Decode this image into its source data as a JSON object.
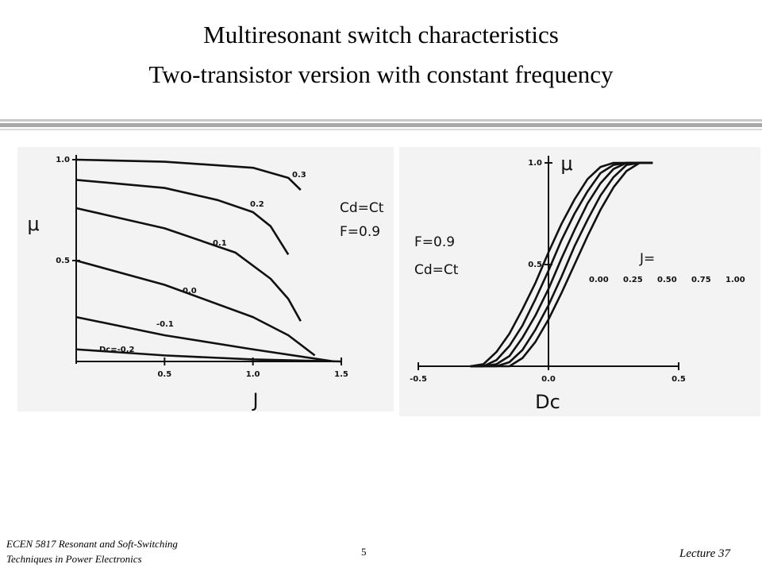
{
  "slide": {
    "title": [
      "Multiresonant switch characteristics",
      "Two-transistor version with constant frequency"
    ],
    "footer_left": [
      "ECEN 5817  Resonant and Soft-Switching",
      "Techniques in Power Electronics"
    ],
    "page_number": "5",
    "footer_right": "Lecture 37"
  },
  "chart_data": [
    {
      "type": "line",
      "xlabel": "J",
      "ylabel": "μ",
      "annotations": [
        "Cd=Ct",
        "F=0.9"
      ],
      "xlim": [
        0,
        1.5
      ],
      "ylim": [
        0,
        1.0
      ],
      "xticks": [
        0.5,
        {
          "value": 1,
          "label": "1.0"
        },
        1.5
      ],
      "yticks": [
        0.5,
        {
          "value": 1,
          "label": "1.0"
        }
      ],
      "grid": false,
      "color": "#111111",
      "series": [
        {
          "name": "0.3",
          "x": [
            0,
            0.5,
            1.0,
            1.2,
            1.27
          ],
          "values": [
            1.0,
            0.99,
            0.96,
            0.91,
            0.85
          ]
        },
        {
          "name": "0.2",
          "x": [
            0,
            0.5,
            0.8,
            1.0,
            1.1,
            1.2
          ],
          "values": [
            0.9,
            0.86,
            0.8,
            0.74,
            0.67,
            0.53
          ]
        },
        {
          "name": "0.1",
          "x": [
            0,
            0.5,
            0.9,
            1.1,
            1.2,
            1.27
          ],
          "values": [
            0.76,
            0.66,
            0.54,
            0.41,
            0.31,
            0.2
          ]
        },
        {
          "name": "0.0",
          "x": [
            0,
            0.5,
            1.0,
            1.2,
            1.35
          ],
          "values": [
            0.5,
            0.38,
            0.22,
            0.13,
            0.03
          ]
        },
        {
          "name": "-0.1",
          "x": [
            0,
            0.5,
            1.0,
            1.46
          ],
          "values": [
            0.22,
            0.13,
            0.06,
            0
          ]
        },
        {
          "name": "Dc=-0.2",
          "x": [
            0,
            0.5,
            1.0,
            1.5
          ],
          "values": [
            0.06,
            0.03,
            0.01,
            0
          ]
        }
      ]
    },
    {
      "type": "line",
      "xlabel": "Dc",
      "ylabel": "μ",
      "annotations": [
        "F=0.9",
        "Cd=Ct"
      ],
      "legend_title": "J=",
      "xlim": [
        -0.5,
        0.5
      ],
      "ylim": [
        0,
        1.0
      ],
      "xticks": [
        -0.5,
        {
          "value": 0,
          "label": "0.0"
        },
        0.5
      ],
      "yticks": [
        0.5,
        {
          "value": 1,
          "label": "1.0"
        }
      ],
      "grid": false,
      "color": "#111111",
      "x": [
        -0.3,
        -0.25,
        -0.2,
        -0.15,
        -0.1,
        -0.05,
        0,
        0.05,
        0.1,
        0.15,
        0.2,
        0.25,
        0.3,
        0.35,
        0.4
      ],
      "series": [
        {
          "name": "0.00",
          "values": [
            0,
            0.01,
            0.07,
            0.16,
            0.28,
            0.41,
            0.56,
            0.7,
            0.82,
            0.92,
            0.98,
            1,
            1,
            1,
            1
          ]
        },
        {
          "name": "0.25",
          "values": [
            0,
            0,
            0.03,
            0.1,
            0.2,
            0.33,
            0.47,
            0.62,
            0.75,
            0.86,
            0.95,
            0.99,
            1,
            1,
            1
          ]
        },
        {
          "name": "0.50",
          "values": [
            0,
            0,
            0.01,
            0.05,
            0.14,
            0.25,
            0.38,
            0.53,
            0.67,
            0.8,
            0.9,
            0.97,
            1,
            1,
            1
          ]
        },
        {
          "name": "0.75",
          "values": [
            0,
            0,
            0,
            0.02,
            0.08,
            0.18,
            0.3,
            0.44,
            0.59,
            0.72,
            0.84,
            0.93,
            0.99,
            1,
            1
          ]
        },
        {
          "name": "1.00",
          "values": [
            0,
            0,
            0,
            0,
            0.04,
            0.12,
            0.23,
            0.36,
            0.5,
            0.64,
            0.77,
            0.88,
            0.96,
            1,
            1
          ]
        }
      ]
    }
  ]
}
